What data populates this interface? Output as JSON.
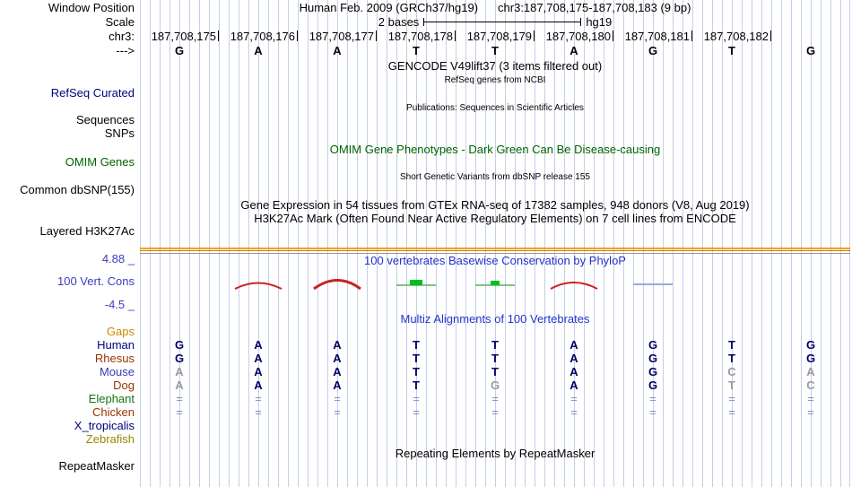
{
  "header": {
    "window_position_label": "Window Position",
    "scale_label": "Scale",
    "chrom_label": "chr3:",
    "direction_label": "--->",
    "assembly_title": "Human Feb. 2009 (GRCh37/hg19)",
    "position_title": "chr3:187,708,175-187,708,183 (9 bp)",
    "scale_text": "2 bases",
    "scale_genome": "hg19",
    "position_labels": [
      "187,708,175",
      "187,708,176",
      "187,708,177",
      "187,708,178",
      "187,708,179",
      "187,708,180",
      "187,708,181",
      "187,708,182"
    ],
    "reference_bases": [
      "G",
      "A",
      "A",
      "T",
      "T",
      "A",
      "G",
      "T",
      "G"
    ]
  },
  "tracks": {
    "gencode_title": "GENCODE V49lift37 (3 items filtered out)",
    "refseq_label": "RefSeq Curated",
    "refseq_title": "RefSeq genes from NCBI",
    "publications_title": "Publications: Sequences in Scientific Articles",
    "publications_sub1": "Sequences",
    "publications_sub2": "SNPs",
    "omim_label": "OMIM Genes",
    "omim_title": "OMIM Gene Phenotypes - Dark Green Can Be Disease-causing",
    "dbsnp_label": "Common dbSNP(155)",
    "dbsnp_title": "Short Genetic Variants from dbSNP release 155",
    "gtex_title": "Gene Expression in 54 tissues from GTEx RNA-seq of 17382 samples, 948 donors (V8, Aug 2019)",
    "h3k27ac_label": "Layered H3K27Ac",
    "h3k27ac_title": "H3K27Ac Mark (Often Found Near Active Regulatory Elements) on 7 cell lines from ENCODE",
    "repeatmasker_label": "RepeatMasker",
    "repeatmasker_title": "Repeating Elements by RepeatMasker"
  },
  "conservation": {
    "title": "100 vertebrates Basewise Conservation by PhyloP",
    "label": "100 Vert. Cons",
    "max_label": "4.88 _",
    "min_label": "-4.5 _",
    "marks": [
      {
        "type": "arc",
        "col": 2,
        "height": 13,
        "stroke": 2,
        "color": "#cc2222"
      },
      {
        "type": "arc",
        "col": 3,
        "height": 19,
        "stroke": 3,
        "color": "#cc2222"
      },
      {
        "type": "bar",
        "col": 4,
        "color": "#55b055",
        "square_color": "#00c020",
        "square_w": 14,
        "square_h": 6
      },
      {
        "type": "bar",
        "col": 5,
        "color": "#55b055",
        "square_color": "#00c020",
        "square_w": 10,
        "square_h": 5
      },
      {
        "type": "arc",
        "col": 6,
        "height": 14,
        "stroke": 2,
        "color": "#cc2222"
      },
      {
        "type": "line",
        "col": 7,
        "color": "#9fa8dc"
      }
    ]
  },
  "multiz": {
    "title": "Multiz Alignments of 100 Vertebrates",
    "gaps_label": "Gaps",
    "rows": [
      {
        "name": "Human",
        "color": "#000080",
        "cells": [
          {
            "t": "G",
            "c": "n"
          },
          {
            "t": "A",
            "c": "n"
          },
          {
            "t": "A",
            "c": "n"
          },
          {
            "t": "T",
            "c": "n"
          },
          {
            "t": "T",
            "c": "n"
          },
          {
            "t": "A",
            "c": "n"
          },
          {
            "t": "G",
            "c": "n"
          },
          {
            "t": "T",
            "c": "n"
          },
          {
            "t": "G",
            "c": "n"
          }
        ]
      },
      {
        "name": "Rhesus",
        "color": "#993300",
        "cells": [
          {
            "t": "G",
            "c": "n"
          },
          {
            "t": "A",
            "c": "n"
          },
          {
            "t": "A",
            "c": "n"
          },
          {
            "t": "T",
            "c": "n"
          },
          {
            "t": "T",
            "c": "n"
          },
          {
            "t": "A",
            "c": "n"
          },
          {
            "t": "G",
            "c": "n"
          },
          {
            "t": "T",
            "c": "n"
          },
          {
            "t": "G",
            "c": "n"
          }
        ]
      },
      {
        "name": "Mouse",
        "color": "#3a3ab8",
        "cells": [
          {
            "t": "A",
            "c": "g"
          },
          {
            "t": "A",
            "c": "n"
          },
          {
            "t": "A",
            "c": "n"
          },
          {
            "t": "T",
            "c": "n"
          },
          {
            "t": "T",
            "c": "n"
          },
          {
            "t": "A",
            "c": "n"
          },
          {
            "t": "G",
            "c": "n"
          },
          {
            "t": "C",
            "c": "g"
          },
          {
            "t": "A",
            "c": "g"
          }
        ]
      },
      {
        "name": "Dog",
        "color": "#993300",
        "cells": [
          {
            "t": "A",
            "c": "g"
          },
          {
            "t": "A",
            "c": "n"
          },
          {
            "t": "A",
            "c": "n"
          },
          {
            "t": "T",
            "c": "n"
          },
          {
            "t": "G",
            "c": "g"
          },
          {
            "t": "A",
            "c": "n"
          },
          {
            "t": "G",
            "c": "n"
          },
          {
            "t": "T",
            "c": "g"
          },
          {
            "t": "C",
            "c": "g"
          }
        ]
      },
      {
        "name": "Elephant",
        "color": "#117711",
        "cells": [
          {
            "t": "=",
            "c": "e"
          },
          {
            "t": "=",
            "c": "e"
          },
          {
            "t": "=",
            "c": "e"
          },
          {
            "t": "=",
            "c": "e"
          },
          {
            "t": "=",
            "c": "e"
          },
          {
            "t": "=",
            "c": "e"
          },
          {
            "t": "=",
            "c": "e"
          },
          {
            "t": "=",
            "c": "e"
          },
          {
            "t": "=",
            "c": "e"
          }
        ]
      },
      {
        "name": "Chicken",
        "color": "#993300",
        "cells": [
          {
            "t": "=",
            "c": "e"
          },
          {
            "t": "=",
            "c": "e"
          },
          {
            "t": "=",
            "c": "e"
          },
          {
            "t": "=",
            "c": "e"
          },
          {
            "t": "=",
            "c": "e"
          },
          {
            "t": "=",
            "c": "e"
          },
          {
            "t": "=",
            "c": "e"
          },
          {
            "t": "=",
            "c": "e"
          },
          {
            "t": "=",
            "c": "e"
          }
        ]
      },
      {
        "name": "X_tropicalis",
        "color": "#000080",
        "cells": [
          {
            "t": "",
            "c": "n"
          },
          {
            "t": "",
            "c": "n"
          },
          {
            "t": "",
            "c": "n"
          },
          {
            "t": "",
            "c": "n"
          },
          {
            "t": "",
            "c": "n"
          },
          {
            "t": "",
            "c": "n"
          },
          {
            "t": "",
            "c": "n"
          },
          {
            "t": "",
            "c": "n"
          },
          {
            "t": "",
            "c": "n"
          }
        ]
      },
      {
        "name": "Zebrafish",
        "color": "#998800",
        "cells": [
          {
            "t": "",
            "c": "n"
          },
          {
            "t": "",
            "c": "n"
          },
          {
            "t": "",
            "c": "n"
          },
          {
            "t": "",
            "c": "n"
          },
          {
            "t": "",
            "c": "n"
          },
          {
            "t": "",
            "c": "n"
          },
          {
            "t": "",
            "c": "n"
          },
          {
            "t": "",
            "c": "n"
          },
          {
            "t": "",
            "c": "n"
          }
        ]
      }
    ]
  },
  "colors": {
    "gridline": "#c5cee9",
    "track_title_blue": "#2233cc",
    "label_blue": "#3c3cc0",
    "omim_green": "#006400",
    "refseq_navy": "#000080",
    "gaps_orange": "#cc8800",
    "h3k27ac_orange": "#ff9900",
    "h3k27ac_dark_orange": "#cc7a00",
    "conservation_red": "#cc2222",
    "conservation_green": "#00c020",
    "conservation_lavender": "#9fa8dc",
    "alignment_base": "#000066",
    "alignment_faded": "#9a9a9a",
    "alignment_equals": "#8090c0"
  }
}
